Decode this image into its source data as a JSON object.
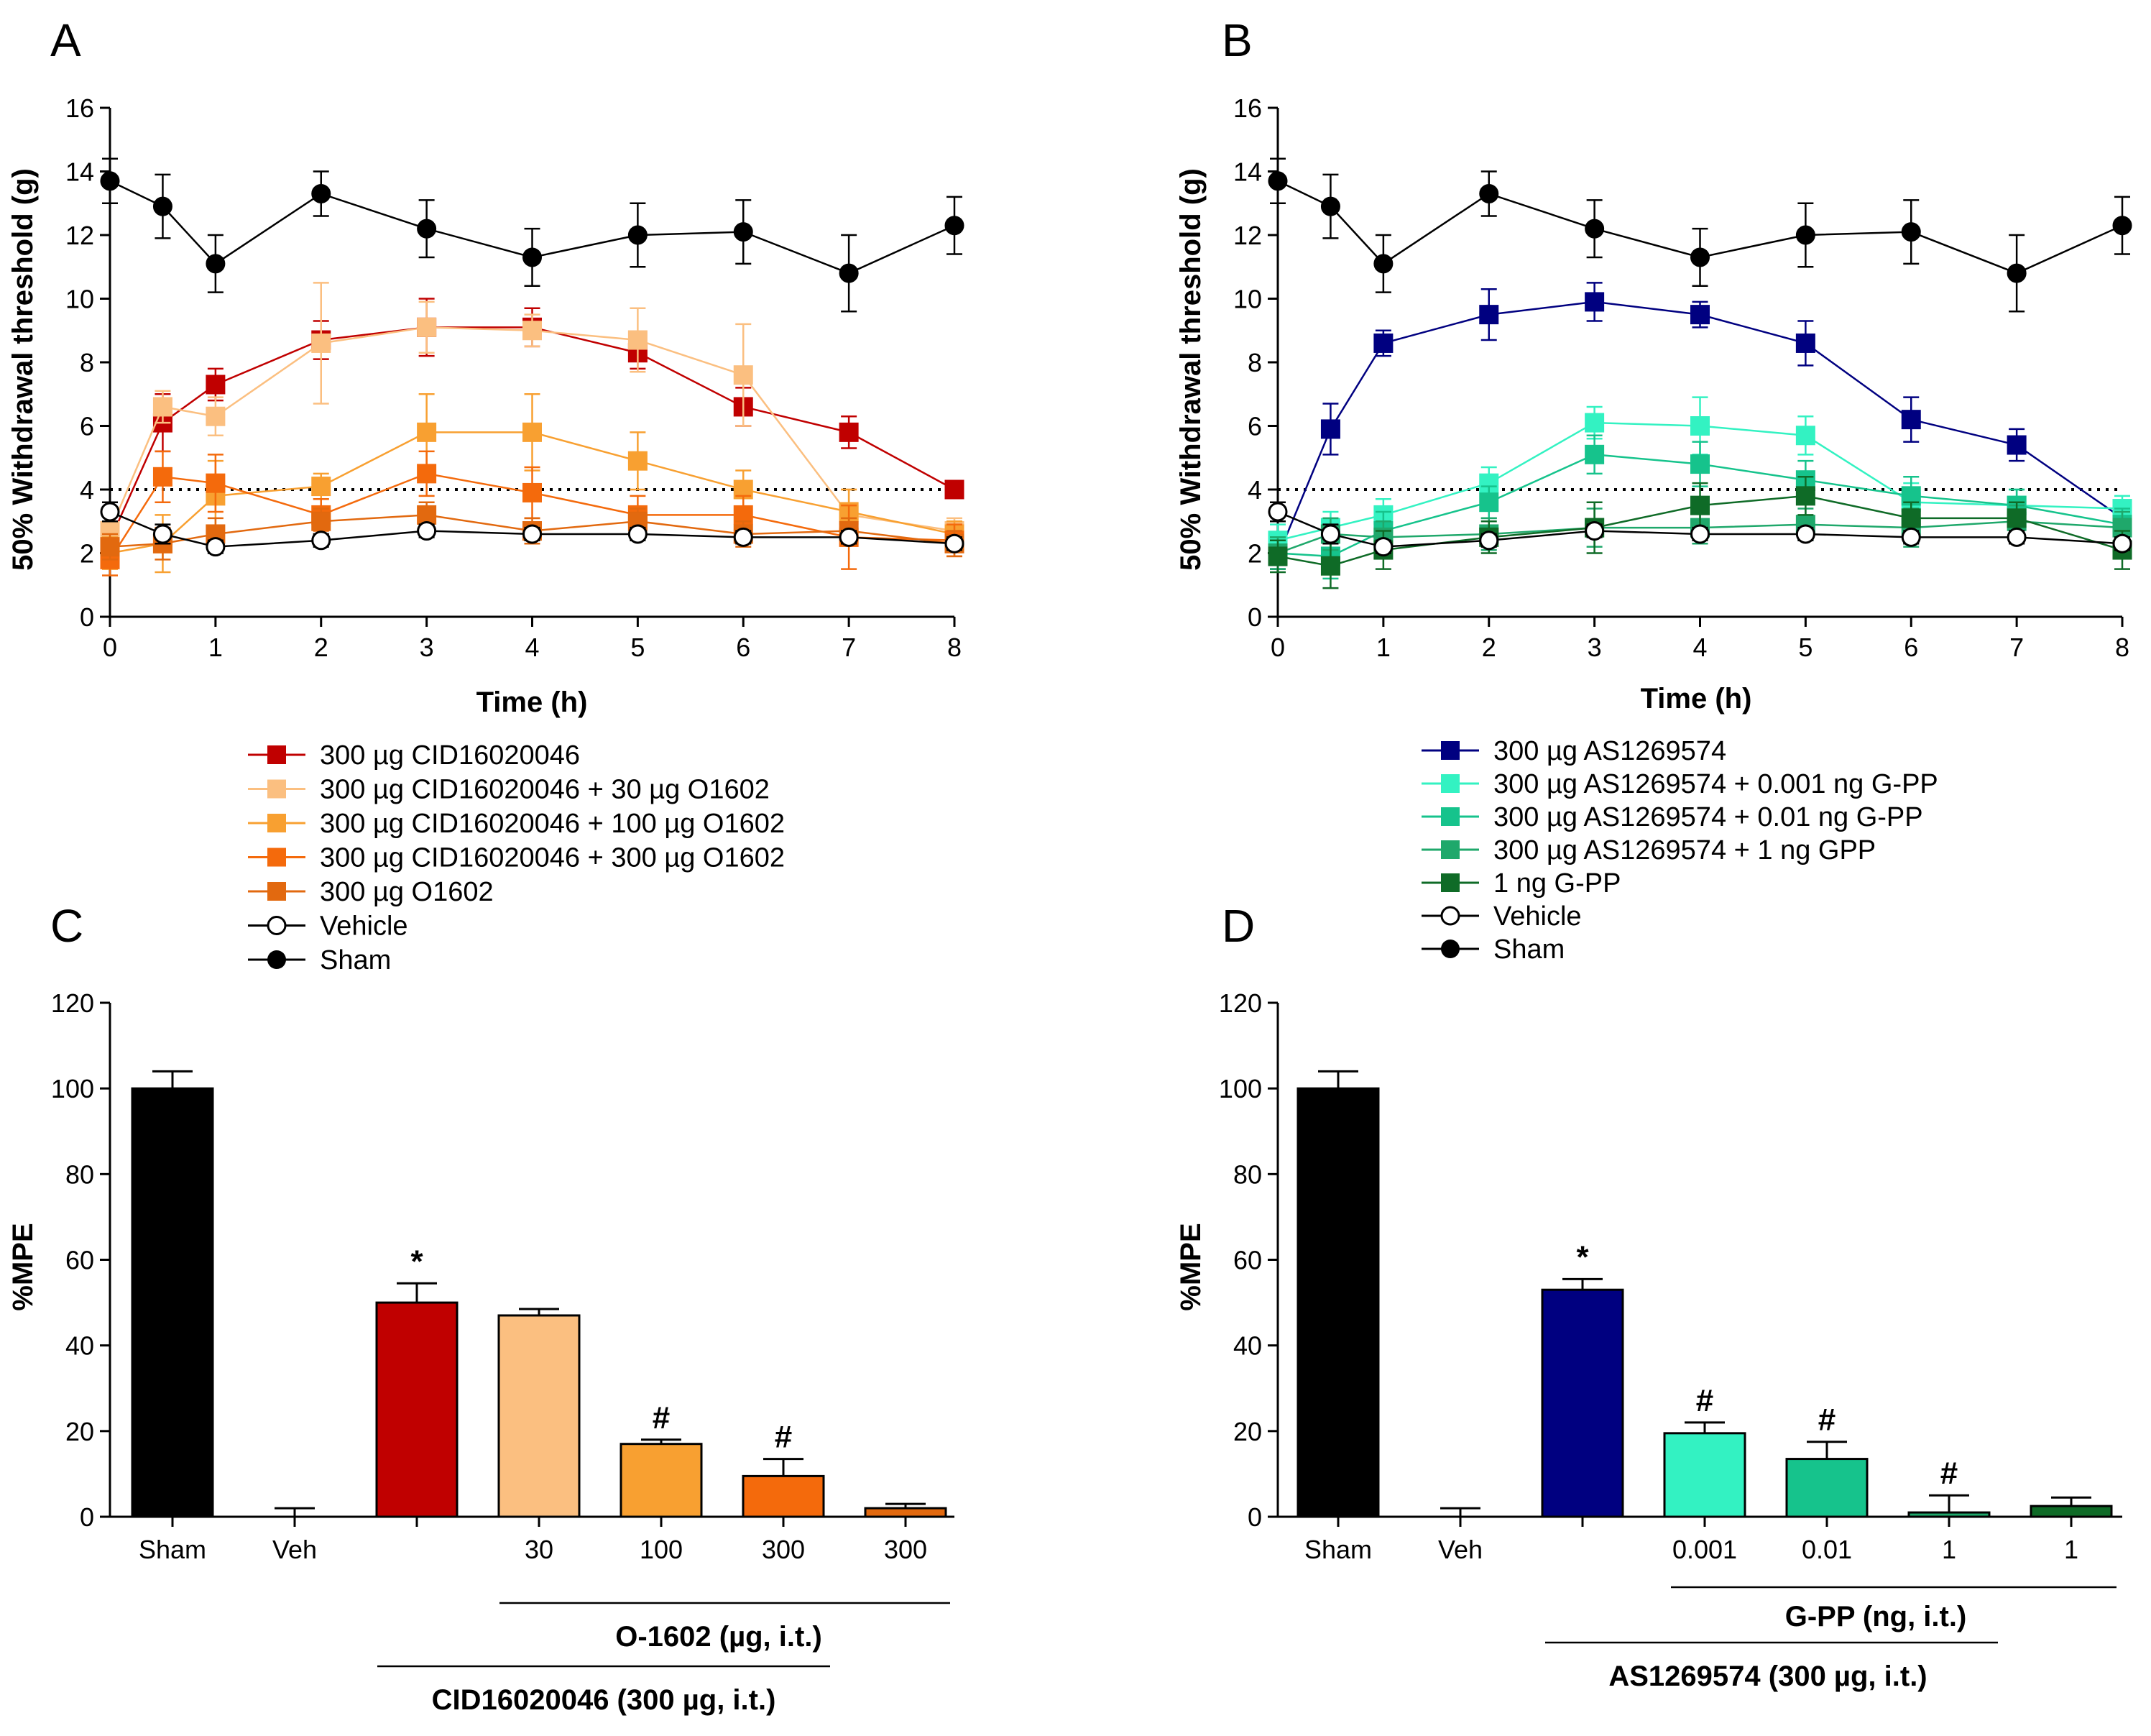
{
  "chart_data": [
    {
      "panel": "A",
      "type": "line",
      "ylabel": "50% Withdrawal threshold (g)",
      "xlabel": "Time (h)",
      "ylim": [
        0,
        16
      ],
      "xlim": [
        0,
        8
      ],
      "yticks": [
        0,
        2,
        4,
        6,
        8,
        10,
        12,
        14,
        16
      ],
      "xticks": [
        0,
        1,
        2,
        3,
        4,
        5,
        6,
        7,
        8
      ],
      "reference_line": 4,
      "x": [
        0,
        0.5,
        1,
        2,
        3,
        4,
        5,
        6,
        7,
        8
      ],
      "series": [
        {
          "name": "300 µg CID16020046",
          "color": "#c00000",
          "marker": "square",
          "values": [
            2.4,
            6.1,
            7.3,
            8.7,
            9.1,
            9.1,
            8.3,
            6.6,
            5.8,
            4.0
          ],
          "errors": [
            0.5,
            0.9,
            0.5,
            0.6,
            0.9,
            0.6,
            0.5,
            0.6,
            0.5,
            0.1
          ]
        },
        {
          "name": "300 µg CID16020046 + 30 µg O1602",
          "color": "#fbbf80",
          "marker": "square",
          "values": [
            2.7,
            6.6,
            6.3,
            8.6,
            9.1,
            9.0,
            8.7,
            7.6,
            3.2,
            2.7
          ],
          "errors": [
            0.6,
            0.5,
            0.6,
            1.9,
            0.8,
            0.5,
            1.0,
            1.6,
            0.8,
            0.4
          ]
        },
        {
          "name": "300 µg CID16020046 + 100 µg O1602",
          "color": "#f8a031",
          "marker": "square",
          "values": [
            2.0,
            2.3,
            3.8,
            4.1,
            5.8,
            5.8,
            4.9,
            4.0,
            3.3,
            2.6
          ],
          "errors": [
            0.5,
            0.9,
            1.1,
            0.4,
            1.2,
            1.2,
            0.9,
            0.6,
            0.7,
            0.4
          ]
        },
        {
          "name": "300 µg CID16020046 + 300 µg O1602",
          "color": "#f46a0c",
          "marker": "square",
          "values": [
            1.8,
            4.4,
            4.2,
            3.2,
            4.5,
            3.9,
            3.2,
            3.2,
            2.5,
            2.4
          ],
          "errors": [
            0.5,
            0.8,
            0.9,
            0.5,
            0.7,
            0.8,
            0.6,
            0.6,
            1.0,
            0.5
          ]
        },
        {
          "name": "300 µg O1602",
          "color": "#e2690f",
          "marker": "square",
          "values": [
            2.2,
            2.3,
            2.6,
            3.0,
            3.2,
            2.7,
            3.0,
            2.6,
            2.7,
            2.3
          ],
          "errors": [
            0.4,
            0.5,
            0.5,
            0.4,
            0.4,
            0.4,
            0.4,
            0.4,
            0.4,
            0.4
          ]
        },
        {
          "name": "Vehicle",
          "color": "#000000",
          "marker": "open-circle",
          "values": [
            3.3,
            2.6,
            2.2,
            2.4,
            2.7,
            2.6,
            2.6,
            2.5,
            2.5,
            2.3
          ],
          "errors": [
            0.3,
            0.3,
            0.2,
            0.2,
            0.2,
            0.2,
            0.2,
            0.2,
            0.2,
            0.2
          ]
        },
        {
          "name": "Sham",
          "color": "#000000",
          "marker": "filled-circle",
          "values": [
            13.7,
            12.9,
            11.1,
            13.3,
            12.2,
            11.3,
            12.0,
            12.1,
            10.8,
            12.3
          ],
          "errors": [
            0.7,
            1.0,
            0.9,
            0.7,
            0.9,
            0.9,
            1.0,
            1.0,
            1.2,
            0.9
          ]
        }
      ]
    },
    {
      "panel": "B",
      "type": "line",
      "ylabel": "50% Withdrawal threshold (g)",
      "xlabel": "Time (h)",
      "ylim": [
        0,
        16
      ],
      "xlim": [
        0,
        8
      ],
      "yticks": [
        0,
        2,
        4,
        6,
        8,
        10,
        12,
        14,
        16
      ],
      "xticks": [
        0,
        1,
        2,
        3,
        4,
        5,
        6,
        7,
        8
      ],
      "reference_line": 4,
      "x": [
        0,
        0.5,
        1,
        2,
        3,
        4,
        5,
        6,
        7,
        8
      ],
      "series": [
        {
          "name": "300 µg AS1269574",
          "color": "#000080",
          "marker": "square",
          "values": [
            1.9,
            5.9,
            8.6,
            9.5,
            9.9,
            9.5,
            8.6,
            6.2,
            5.4,
            3.1
          ],
          "errors": [
            0.4,
            0.8,
            0.4,
            0.8,
            0.6,
            0.4,
            0.7,
            0.7,
            0.5,
            0.3
          ]
        },
        {
          "name": "300 µg AS1269574 + 0.001 ng G-PP",
          "color": "#33f2c2",
          "marker": "square",
          "values": [
            2.4,
            2.8,
            3.2,
            4.2,
            6.1,
            6.0,
            5.7,
            3.6,
            3.5,
            3.4
          ],
          "errors": [
            0.5,
            0.5,
            0.5,
            0.5,
            0.5,
            0.9,
            0.6,
            0.6,
            0.5,
            0.4
          ]
        },
        {
          "name": "300 µg AS1269574 + 0.01 ng G-PP",
          "color": "#16c38c",
          "marker": "square",
          "values": [
            2.0,
            1.9,
            2.7,
            3.6,
            5.1,
            4.8,
            4.3,
            3.8,
            3.5,
            2.9
          ],
          "errors": [
            0.5,
            0.7,
            0.6,
            0.5,
            0.6,
            0.7,
            0.6,
            0.6,
            0.5,
            0.5
          ]
        },
        {
          "name": "300 µg AS1269574 + 1 ng GPP",
          "color": "#1fa86b",
          "marker": "square",
          "values": [
            2.0,
            2.6,
            2.5,
            2.6,
            2.8,
            2.8,
            2.9,
            2.8,
            3.0,
            2.8
          ],
          "errors": [
            0.5,
            0.5,
            0.5,
            0.5,
            0.6,
            0.5,
            0.5,
            0.6,
            0.5,
            0.5
          ]
        },
        {
          "name": "1 ng G-PP",
          "color": "#0f6b27",
          "marker": "square",
          "values": [
            1.9,
            1.6,
            2.1,
            2.5,
            2.8,
            3.5,
            3.8,
            3.1,
            3.1,
            2.1
          ],
          "errors": [
            0.5,
            0.7,
            0.6,
            0.5,
            0.8,
            0.7,
            0.6,
            0.5,
            0.5,
            0.6
          ]
        },
        {
          "name": "Vehicle",
          "color": "#000000",
          "marker": "open-circle",
          "values": [
            3.3,
            2.6,
            2.2,
            2.4,
            2.7,
            2.6,
            2.6,
            2.5,
            2.5,
            2.3
          ],
          "errors": [
            0.3,
            0.3,
            0.2,
            0.2,
            0.2,
            0.2,
            0.2,
            0.2,
            0.2,
            0.2
          ]
        },
        {
          "name": "Sham",
          "color": "#000000",
          "marker": "filled-circle",
          "values": [
            13.7,
            12.9,
            11.1,
            13.3,
            12.2,
            11.3,
            12.0,
            12.1,
            10.8,
            12.3
          ],
          "errors": [
            0.7,
            1.0,
            0.9,
            0.7,
            0.9,
            0.9,
            1.0,
            1.0,
            1.2,
            0.9
          ]
        }
      ]
    },
    {
      "panel": "C",
      "type": "bar",
      "ylabel": "%MPE",
      "ylim": [
        0,
        120
      ],
      "yticks": [
        0,
        20,
        40,
        60,
        80,
        100,
        120
      ],
      "categories": [
        "Sham",
        "Veh",
        "",
        "30",
        "100",
        "300",
        "300"
      ],
      "values": [
        100,
        0,
        50,
        47,
        17,
        9.5,
        2
      ],
      "errors": [
        4,
        2,
        4.5,
        1.5,
        1,
        4,
        1
      ],
      "colors": [
        "#000000",
        "#000000",
        "#c00000",
        "#fbbf80",
        "#f8a031",
        "#f46a0c",
        "#e2690f"
      ],
      "annotations": [
        "",
        "",
        "*",
        "",
        "#",
        "#",
        ""
      ],
      "group_labels": [
        "O-1602 (µg, i.t.)",
        "CID16020046  (300 µg, i.t.)"
      ]
    },
    {
      "panel": "D",
      "type": "bar",
      "ylabel": "%MPE",
      "ylim": [
        0,
        120
      ],
      "yticks": [
        0,
        20,
        40,
        60,
        80,
        100,
        120
      ],
      "categories": [
        "Sham",
        "Veh",
        "",
        "0.001",
        "0.01",
        "1",
        "1"
      ],
      "values": [
        100,
        0,
        53,
        19.5,
        13.5,
        1,
        2.5
      ],
      "errors": [
        4,
        2,
        2.5,
        2.5,
        4,
        4,
        2
      ],
      "colors": [
        "#000000",
        "#000000",
        "#000080",
        "#33f2c2",
        "#16c38c",
        "#1fa86b",
        "#0f6b27"
      ],
      "annotations": [
        "",
        "",
        "*",
        "#",
        "#",
        "#",
        ""
      ],
      "group_labels": [
        "G-PP (ng, i.t.)",
        "AS1269574  (300 µg, i.t.)"
      ]
    }
  ]
}
